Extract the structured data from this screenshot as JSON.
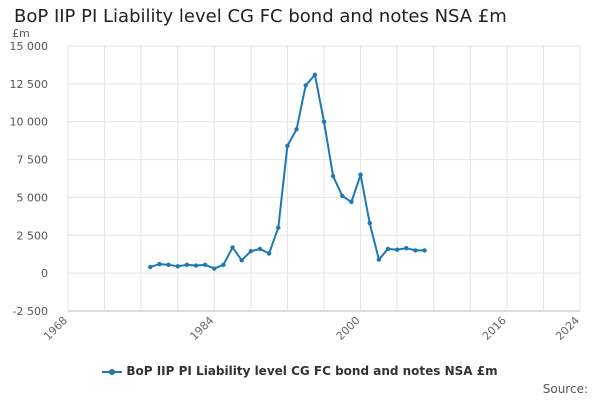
{
  "title": "BoP IIP PI Liability level CG FC bond and notes NSA £m",
  "source_label": "Source:",
  "colors": {
    "series": "#1f78b4",
    "grid": "#e4e4e4",
    "axis": "#bbbbbb"
  },
  "chart_data": {
    "type": "line",
    "title": "BoP IIP PI Liability level CG FC bond and notes NSA £m",
    "ylabel": "£m",
    "xlabel": "",
    "ylim": [
      -2500,
      15000
    ],
    "xlim": [
      1968,
      2024
    ],
    "y_ticks": [
      -2500,
      0,
      2500,
      5000,
      7500,
      10000,
      12500,
      15000
    ],
    "y_tick_labels": [
      "-2 500",
      "0",
      "2 500",
      "5 000",
      "7 500",
      "10 000",
      "12 500",
      "15 000"
    ],
    "x_ticks": [
      1968,
      1972,
      1976,
      1980,
      1984,
      1988,
      1992,
      1996,
      2000,
      2004,
      2008,
      2012,
      2016,
      2020,
      2024
    ],
    "x_tick_labels": [
      "1968",
      "1984",
      "2000",
      "2016",
      "2024"
    ],
    "x_tick_label_values": [
      1968,
      1984,
      2000,
      2016,
      2024
    ],
    "grid": true,
    "legend_position": "bottom-center",
    "series": [
      {
        "name": "BoP IIP PI Liability level CG FC bond and notes NSA £m",
        "x": [
          1977,
          1978,
          1979,
          1980,
          1981,
          1982,
          1983,
          1984,
          1985,
          1986,
          1987,
          1988,
          1989,
          1990,
          1991,
          1992,
          1993,
          1994,
          1995,
          1996,
          1997,
          1998,
          1999,
          2000,
          2001,
          2002,
          2003,
          2004,
          2005,
          2006,
          2007
        ],
        "values": [
          400,
          600,
          550,
          450,
          550,
          500,
          550,
          300,
          550,
          1700,
          850,
          1450,
          1600,
          1300,
          3000,
          8400,
          9500,
          12400,
          13100,
          10000,
          6400,
          5100,
          4700,
          6500,
          3300,
          900,
          1600,
          1550,
          1650,
          1500,
          1500
        ]
      }
    ]
  }
}
